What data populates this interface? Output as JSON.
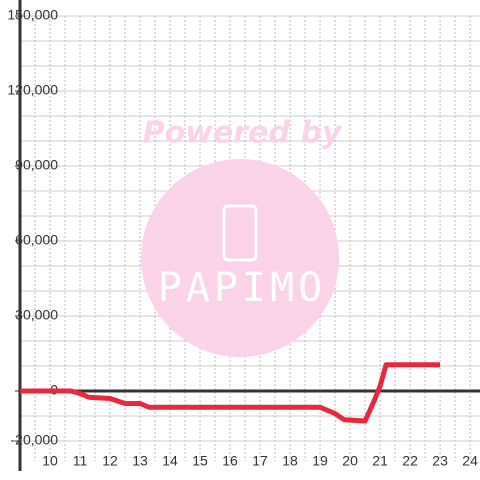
{
  "chart_data": {
    "type": "line",
    "annotations": [
      "Powered by",
      "PAPIMO"
    ],
    "x": [
      9,
      10.7,
      11,
      11.3,
      12,
      12.5,
      13,
      13.3,
      19,
      19.5,
      19.8,
      20.5,
      20.8,
      21,
      21.2,
      23
    ],
    "series": [
      {
        "color": "#e8283c",
        "values": [
          0,
          0,
          -1000,
          -2500,
          -3000,
          -5000,
          -5000,
          -6500,
          -6500,
          -9000,
          -11500,
          -12000,
          -4000,
          2000,
          10500,
          10500
        ]
      }
    ],
    "xlim": [
      9,
      24.33
    ],
    "xticks": [
      10,
      11,
      12,
      13,
      14,
      15,
      16,
      17,
      18,
      19,
      20,
      21,
      22,
      23,
      24
    ],
    "xminorticks": [
      9.5,
      10.5,
      11.5,
      12.5,
      13.5,
      14.5,
      15.5,
      16.5,
      17.5,
      18.5,
      19.5,
      20.5,
      21.5,
      22.5,
      23.5
    ],
    "ylim": [
      -20000,
      150000
    ],
    "yticks": [
      {
        "value": -20000,
        "label": "-20,000"
      },
      0,
      {
        "value": 30000,
        "label": "30,000"
      },
      {
        "value": 60000,
        "label": "60,000"
      },
      {
        "value": 90000,
        "label": "90,000"
      },
      {
        "value": 120000,
        "label": "120,000"
      },
      {
        "value": 150000,
        "label": "150,000"
      }
    ],
    "yminorticks": [
      -10000,
      10000,
      20000,
      40000,
      50000,
      70000,
      80000,
      100000,
      110000,
      130000,
      140000
    ],
    "grid": true
  }
}
